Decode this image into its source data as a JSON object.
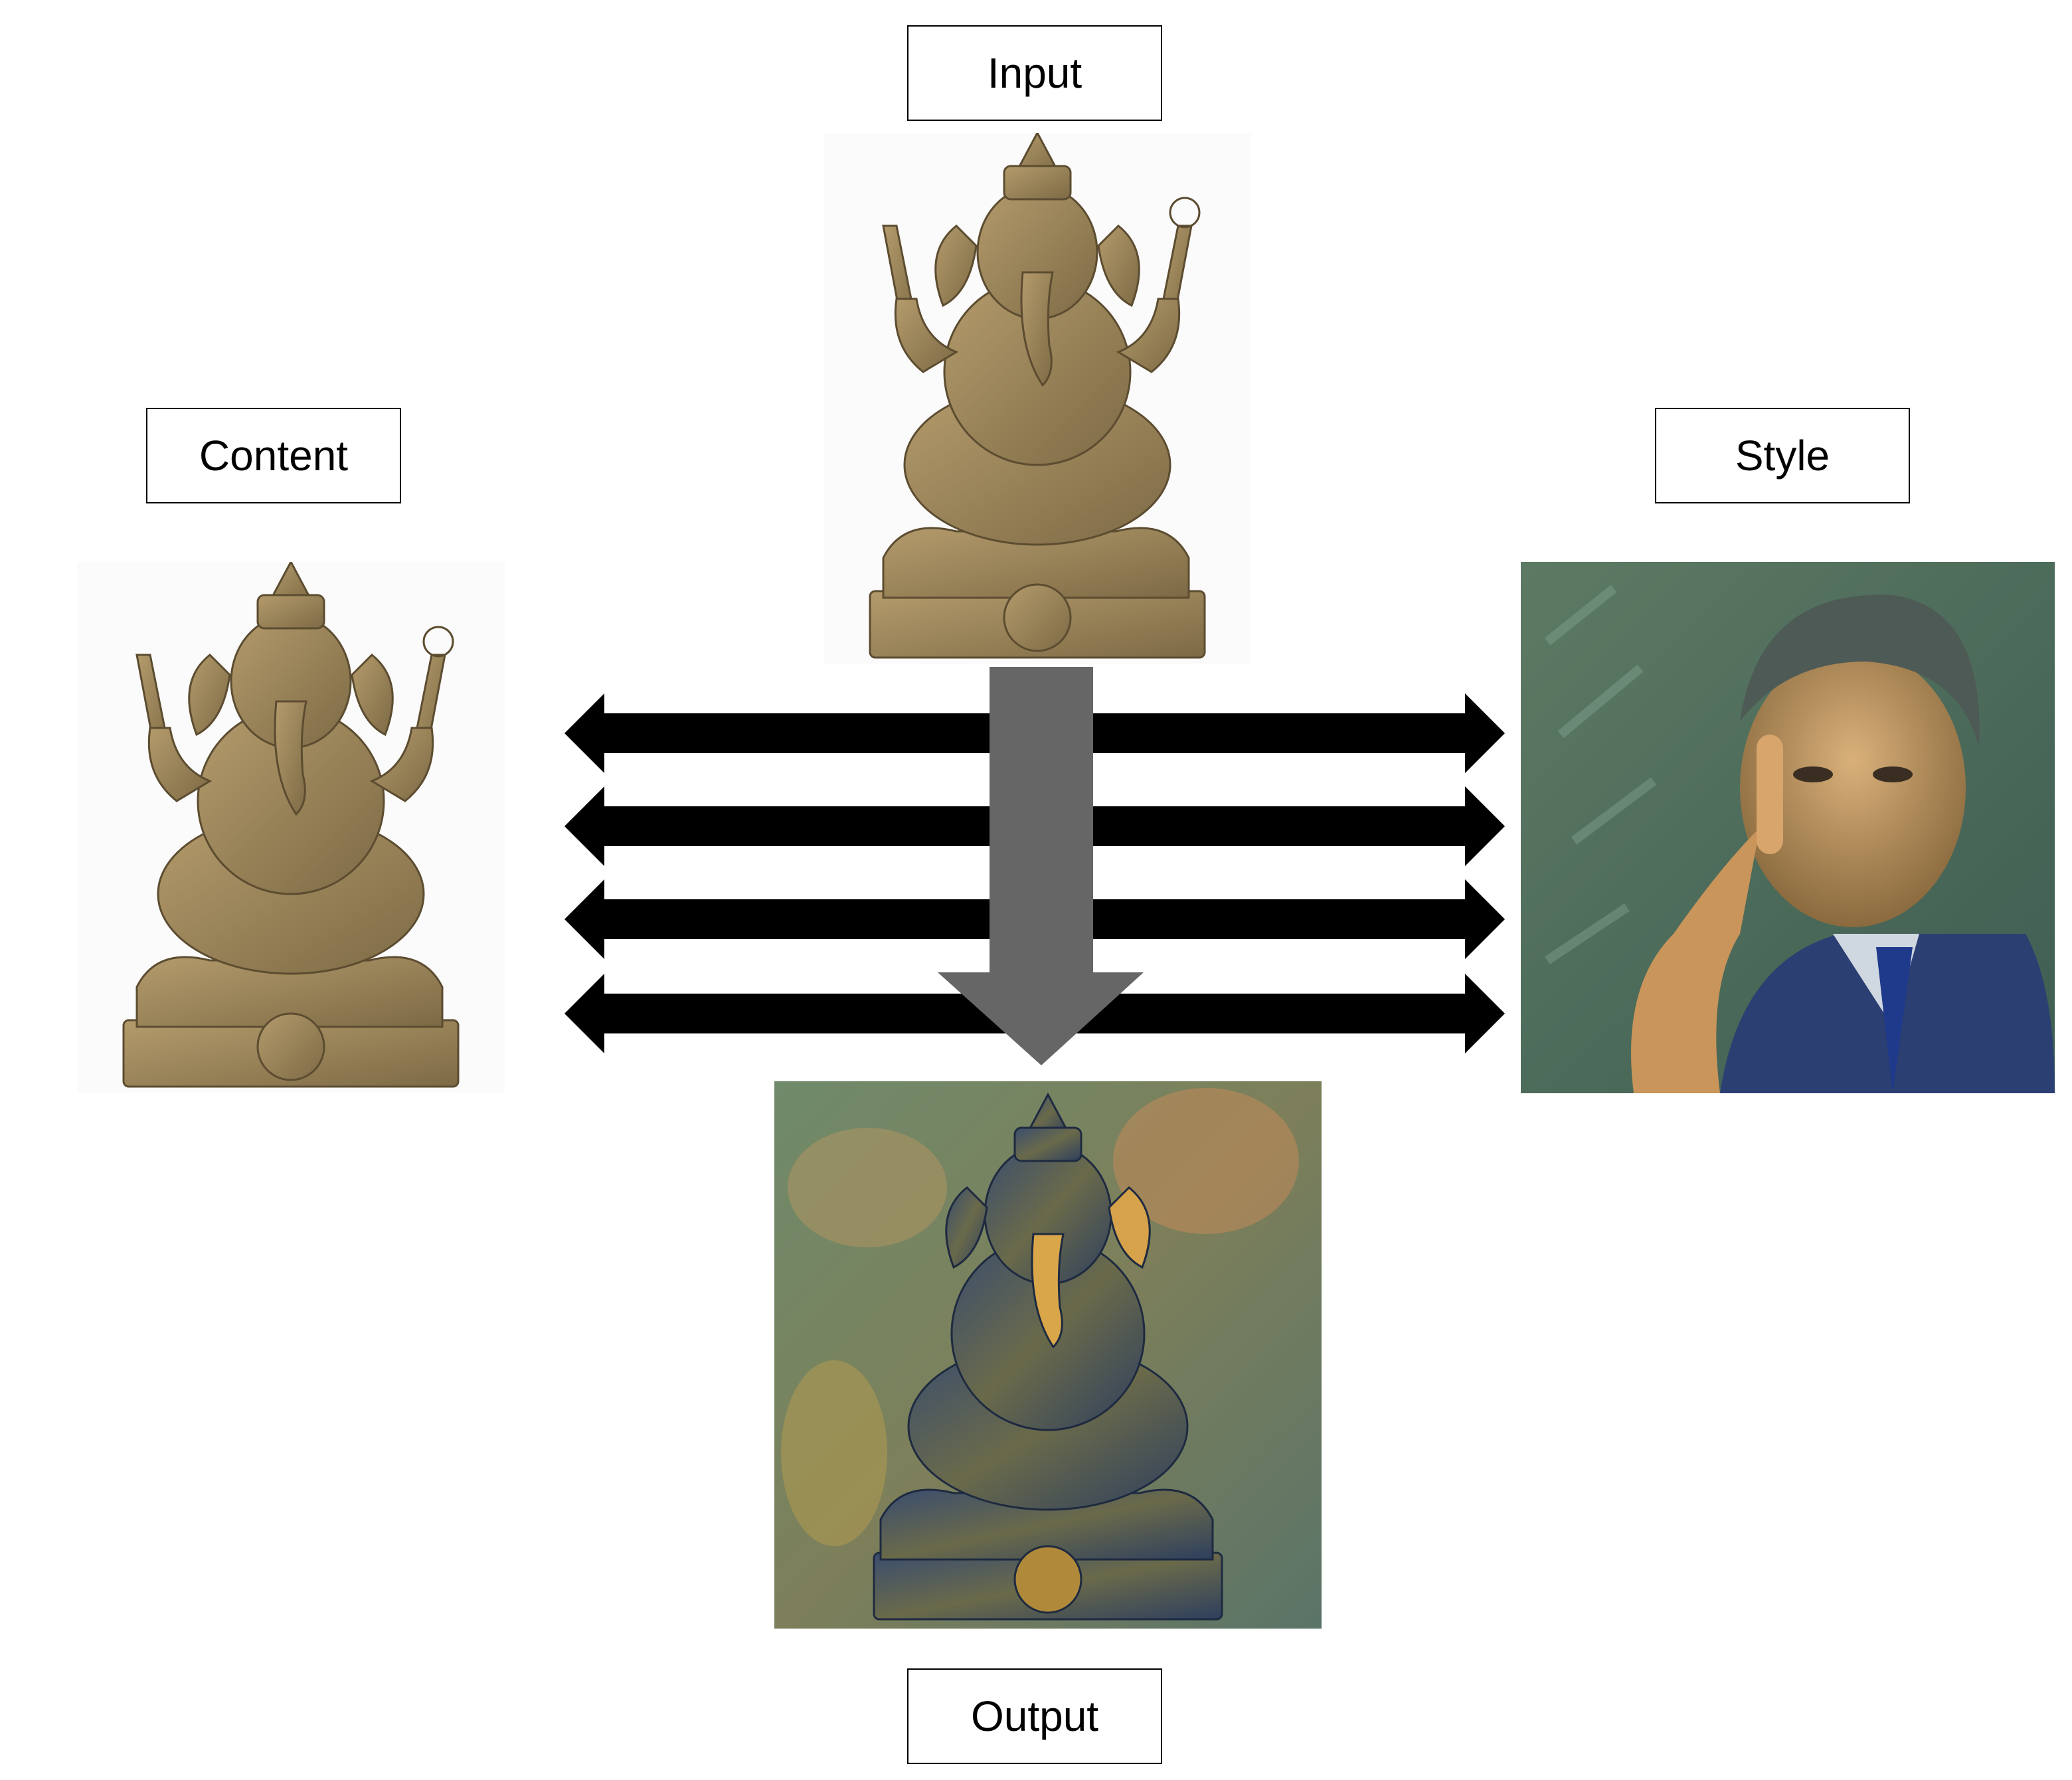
{
  "labels": {
    "input": "Input",
    "content": "Content",
    "style": "Style",
    "output": "Output"
  },
  "images": {
    "input": "ganesha-statue",
    "content": "ganesha-statue",
    "style": "portrait-painting",
    "output": "stylized-ganesha"
  },
  "colors": {
    "arrow_black": "#000000",
    "arrow_gray": "#666666",
    "statue_bronze": "#a08a5c",
    "style_bg": "#4f6f5c",
    "suit_blue": "#2b3f72"
  }
}
